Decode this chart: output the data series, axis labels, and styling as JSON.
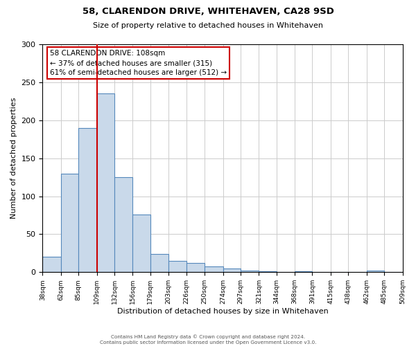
{
  "title": "58, CLARENDON DRIVE, WHITEHAVEN, CA28 9SD",
  "subtitle": "Size of property relative to detached houses in Whitehaven",
  "xlabel": "Distribution of detached houses by size in Whitehaven",
  "ylabel": "Number of detached properties",
  "bin_edges": [
    38,
    62,
    85,
    109,
    132,
    156,
    179,
    203,
    226,
    250,
    274,
    297,
    321,
    344,
    368,
    391,
    415,
    438,
    462,
    485,
    509
  ],
  "bar_heights": [
    20,
    130,
    190,
    235,
    125,
    76,
    24,
    15,
    12,
    8,
    5,
    2,
    1,
    0,
    1,
    0,
    0,
    0,
    2,
    0
  ],
  "bar_color": "#c9d9ea",
  "bar_edge_color": "#5588bb",
  "vline_x": 109,
  "vline_color": "#cc0000",
  "ylim": [
    0,
    300
  ],
  "yticks": [
    0,
    50,
    100,
    150,
    200,
    250,
    300
  ],
  "annotation_title": "58 CLARENDON DRIVE: 108sqm",
  "annotation_line1": "← 37% of detached houses are smaller (315)",
  "annotation_line2": "61% of semi-detached houses are larger (512) →",
  "annotation_box_color": "#ffffff",
  "annotation_box_edge_color": "#cc0000",
  "footer_line1": "Contains HM Land Registry data © Crown copyright and database right 2024.",
  "footer_line2": "Contains public sector information licensed under the Open Government Licence v3.0.",
  "background_color": "#ffffff",
  "grid_color": "#cccccc"
}
